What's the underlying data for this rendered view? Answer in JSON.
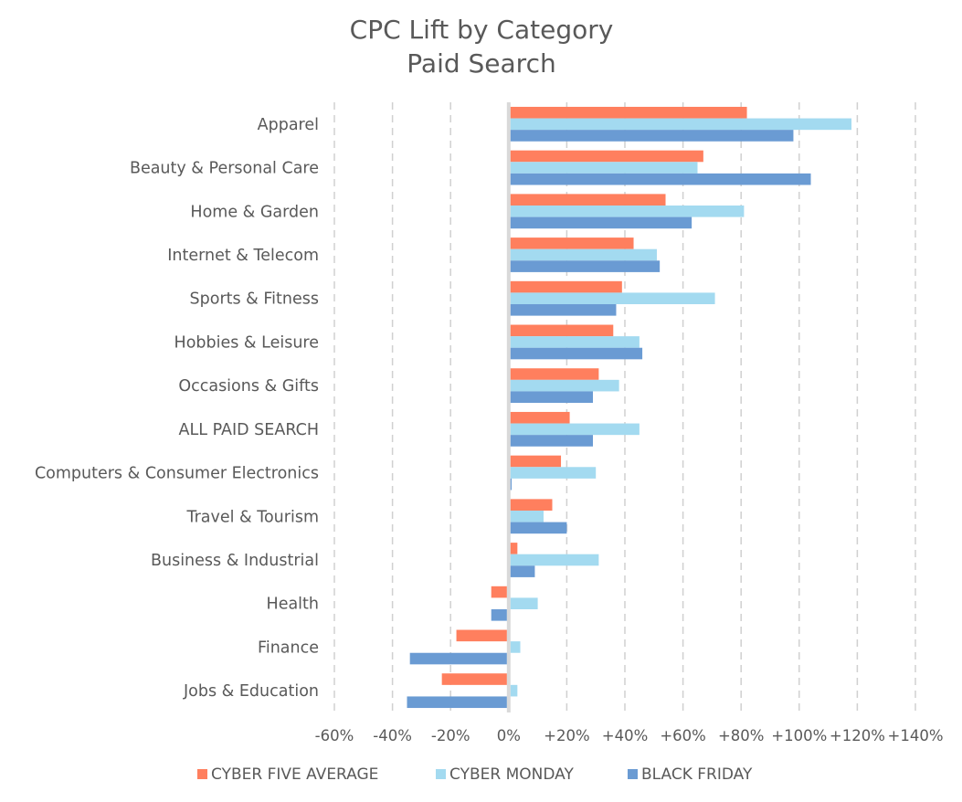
{
  "chart_data": {
    "type": "bar",
    "orientation": "horizontal",
    "title": [
      "CPC Lift by Category",
      "Paid Search"
    ],
    "categories": [
      "Apparel",
      "Beauty & Personal Care",
      "Home & Garden",
      "Internet & Telecom",
      "Sports & Fitness",
      "Hobbies & Leisure",
      "Occasions & Gifts",
      "ALL PAID SEARCH",
      "Computers & Consumer Electronics",
      "Travel & Tourism",
      "Business & Industrial",
      "Health",
      "Finance",
      "Jobs & Education"
    ],
    "series": [
      {
        "name": "CYBER FIVE AVERAGE",
        "color": "#ff7f5e",
        "values": [
          82,
          67,
          54,
          43,
          39,
          36,
          31,
          21,
          18,
          15,
          3,
          -6,
          -18,
          -23
        ]
      },
      {
        "name": "CYBER MONDAY",
        "color": "#a3daf0",
        "values": [
          118,
          65,
          81,
          51,
          71,
          45,
          38,
          45,
          30,
          12,
          31,
          10,
          4,
          3
        ]
      },
      {
        "name": "BLACK FRIDAY",
        "color": "#6a9bd3",
        "values": [
          98,
          104,
          63,
          52,
          37,
          46,
          29,
          29,
          1,
          20,
          9,
          -6,
          -34,
          -35
        ]
      }
    ],
    "xlim": [
      -60,
      140
    ],
    "xticks": [
      -60,
      -40,
      -20,
      0,
      20,
      40,
      60,
      80,
      100,
      120,
      140
    ],
    "xtick_labels": [
      "-60%",
      "-40%",
      "-20%",
      "0%",
      "+20%",
      "+40%",
      "+60%",
      "+80%",
      "+100%",
      "+120%",
      "+140%"
    ],
    "grid": true,
    "legend_position": "bottom"
  }
}
